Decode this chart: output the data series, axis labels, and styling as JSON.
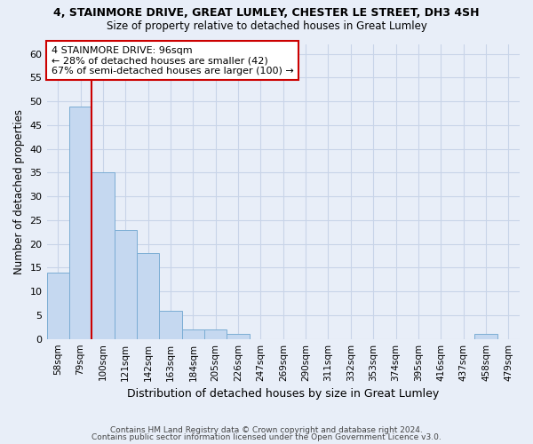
{
  "title1": "4, STAINMORE DRIVE, GREAT LUMLEY, CHESTER LE STREET, DH3 4SH",
  "title2": "Size of property relative to detached houses in Great Lumley",
  "xlabel": "Distribution of detached houses by size in Great Lumley",
  "ylabel": "Number of detached properties",
  "categories": [
    "58sqm",
    "79sqm",
    "100sqm",
    "121sqm",
    "142sqm",
    "163sqm",
    "184sqm",
    "205sqm",
    "226sqm",
    "247sqm",
    "269sqm",
    "290sqm",
    "311sqm",
    "332sqm",
    "353sqm",
    "374sqm",
    "395sqm",
    "416sqm",
    "437sqm",
    "458sqm",
    "479sqm"
  ],
  "values": [
    14,
    49,
    35,
    23,
    18,
    6,
    2,
    2,
    1,
    0,
    0,
    0,
    0,
    0,
    0,
    0,
    0,
    0,
    0,
    1,
    0
  ],
  "bar_color": "#c5d8f0",
  "bar_edge_color": "#7badd4",
  "vline_color": "#cc0000",
  "annotation_line1": "4 STAINMORE DRIVE: 96sqm",
  "annotation_line2": "← 28% of detached houses are smaller (42)",
  "annotation_line3": "67% of semi-detached houses are larger (100) →",
  "annotation_box_color": "#ffffff",
  "annotation_box_edge": "#cc0000",
  "ylim": [
    0,
    62
  ],
  "yticks": [
    0,
    5,
    10,
    15,
    20,
    25,
    30,
    35,
    40,
    45,
    50,
    55,
    60
  ],
  "grid_color": "#c8d4e8",
  "bg_color": "#e8eef8",
  "footer1": "Contains HM Land Registry data © Crown copyright and database right 2024.",
  "footer2": "Contains public sector information licensed under the Open Government Licence v3.0."
}
